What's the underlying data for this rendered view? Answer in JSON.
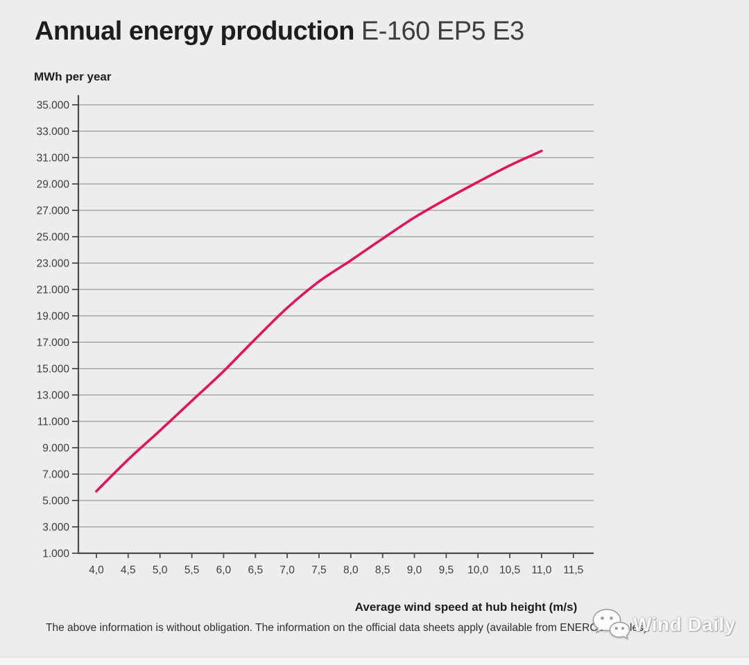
{
  "title": {
    "main": "Annual energy production",
    "model": "E-160 EP5 E3"
  },
  "y_axis_title": "MWh per year",
  "x_axis_title": "Average wind speed at hub height (m/s)",
  "disclaimer": "The above information is without obligation. The information on the official data sheets apply (available from ENERCON Sales).",
  "watermark": {
    "label": "Wind Daily",
    "icon": "wechat-icon"
  },
  "colors": {
    "background": "#ededed",
    "curve": "#e3125a",
    "grid": "#b0b0b0",
    "axis": "#4b4b4b",
    "text_dark": "#1d1d1b",
    "text_gray": "#3c3c3b"
  },
  "chart_data": {
    "type": "line",
    "title": "Annual energy production E-160 EP5 E3",
    "xlabel": "Average wind speed at hub height (m/s)",
    "ylabel": "MWh per year",
    "x": [
      4.0,
      4.5,
      5.0,
      5.5,
      6.0,
      6.5,
      7.0,
      7.5,
      8.0,
      8.5,
      9.0,
      9.5,
      10.0,
      10.5,
      11.0
    ],
    "y": [
      5700,
      8100,
      10300,
      12550,
      14800,
      17250,
      19600,
      21600,
      23200,
      24850,
      26450,
      27850,
      29150,
      30400,
      31500
    ],
    "x_tick_values": [
      4.0,
      4.5,
      5.0,
      5.5,
      6.0,
      6.5,
      7.0,
      7.5,
      8.0,
      8.5,
      9.0,
      9.5,
      10.0,
      10.5,
      11.0,
      11.5
    ],
    "x_tick_labels": [
      "4,0",
      "4,5",
      "5,0",
      "5,5",
      "6,0",
      "6,5",
      "7,0",
      "7,5",
      "8,0",
      "8,5",
      "9,0",
      "9,5",
      "10,0",
      "10,5",
      "11,0",
      "11,5"
    ],
    "y_tick_values": [
      1000,
      3000,
      5000,
      7000,
      9000,
      11000,
      13000,
      15000,
      17000,
      19000,
      21000,
      23000,
      25000,
      27000,
      29000,
      31000,
      33000,
      35000
    ],
    "y_tick_labels": [
      "1.000",
      "3.000",
      "5.000",
      "7.000",
      "9.000",
      "11.000",
      "13.000",
      "15.000",
      "17.000",
      "19.000",
      "21.000",
      "23.000",
      "25.000",
      "27.000",
      "29.000",
      "31.000",
      "33.000",
      "35.000"
    ],
    "xlim": [
      3.72,
      11.83
    ],
    "ylim": [
      1000,
      35000
    ],
    "grid": true,
    "legend": "none",
    "line_color": "#e3125a"
  }
}
